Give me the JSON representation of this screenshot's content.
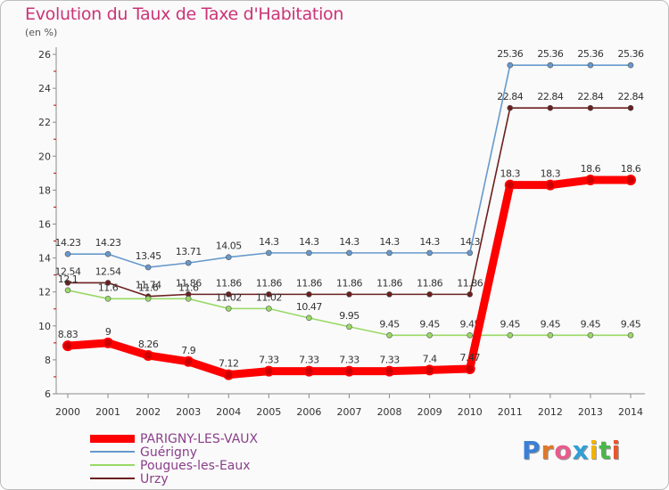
{
  "header": {
    "title": "Evolution du Taux de Taxe d'Habitation",
    "unit": "(en %)"
  },
  "chart_data": {
    "type": "line",
    "title": "Evolution du Taux de Taxe d'Habitation",
    "ylabel": "(en %)",
    "xlabel": "",
    "categories": [
      "2000",
      "2001",
      "2002",
      "2003",
      "2004",
      "2005",
      "2006",
      "2007",
      "2008",
      "2009",
      "2010",
      "2011",
      "2012",
      "2013",
      "2014"
    ],
    "ylim": [
      6,
      26
    ],
    "yticks": [
      6,
      8,
      10,
      12,
      14,
      16,
      18,
      20,
      22,
      24,
      26
    ],
    "grid": false,
    "legend_position": "bottom-left",
    "series": [
      {
        "name": "Urzy",
        "color": "#6b1f1f",
        "values": [
          12.54,
          12.54,
          11.74,
          11.86,
          11.86,
          11.86,
          11.86,
          11.86,
          11.86,
          11.86,
          11.86,
          22.84,
          22.84,
          22.84,
          22.84
        ],
        "labels": [
          "12.54",
          "12.54",
          "11.74",
          "11.86",
          "11.86",
          "11.86",
          "11.86",
          "11.86",
          "11.86",
          "11.86",
          "11.86",
          "22.84",
          "22.84",
          "22.84",
          "22.84"
        ]
      },
      {
        "name": "Pougues-les-Eaux",
        "color": "#99d966",
        "values": [
          12.1,
          11.6,
          11.6,
          11.6,
          11.02,
          11.02,
          10.47,
          9.95,
          9.45,
          9.45,
          9.45,
          9.45,
          9.45,
          9.45,
          9.45
        ],
        "labels": [
          "12.1",
          "11.6",
          "11.6",
          "11.6",
          "11.02",
          "11.02",
          "10.47",
          "9.95",
          "9.45",
          "9.45",
          "9.45",
          "9.45",
          "9.45",
          "9.45",
          "9.45"
        ]
      },
      {
        "name": "Guérigny",
        "color": "#6699cc",
        "values": [
          14.23,
          14.23,
          13.45,
          13.71,
          14.05,
          14.3,
          14.3,
          14.3,
          14.3,
          14.3,
          14.3,
          25.36,
          25.36,
          25.36,
          25.36
        ],
        "labels": [
          "14.23",
          "14.23",
          "13.45",
          "13.71",
          "14.05",
          "14.3",
          "14.3",
          "14.3",
          "14.3",
          "14.3",
          "14.3",
          "25.36",
          "25.36",
          "25.36",
          "25.36"
        ]
      },
      {
        "name": "PARIGNY-LES-VAUX",
        "color": "#ff0000",
        "highlight": true,
        "values": [
          8.83,
          9,
          8.26,
          7.9,
          7.12,
          7.33,
          7.33,
          7.33,
          7.33,
          7.4,
          7.47,
          18.3,
          18.3,
          18.6,
          18.6
        ],
        "labels": [
          "8.83",
          "9",
          "8.26",
          "7.9",
          "7.12",
          "7.33",
          "7.33",
          "7.33",
          "7.33",
          "7.4",
          "7.47",
          "18.3",
          "18.3",
          "18.6",
          "18.6"
        ]
      }
    ]
  },
  "legend": [
    {
      "name": "PARIGNY-LES-VAUX",
      "color": "#ff0000",
      "thick": true
    },
    {
      "name": "Guérigny",
      "color": "#6699cc",
      "thick": false
    },
    {
      "name": "Pougues-les-Eaux",
      "color": "#99d966",
      "thick": false
    },
    {
      "name": "Urzy",
      "color": "#6b1f1f",
      "thick": false
    }
  ],
  "logo": {
    "letters": [
      "P",
      "r",
      "o",
      "x",
      "i",
      "t",
      "i"
    ],
    "colors": [
      "#3a7fd5",
      "#e0782b",
      "#e85b8a",
      "#2f9fd6",
      "#f2b400",
      "#49b749",
      "#e8562f"
    ]
  }
}
